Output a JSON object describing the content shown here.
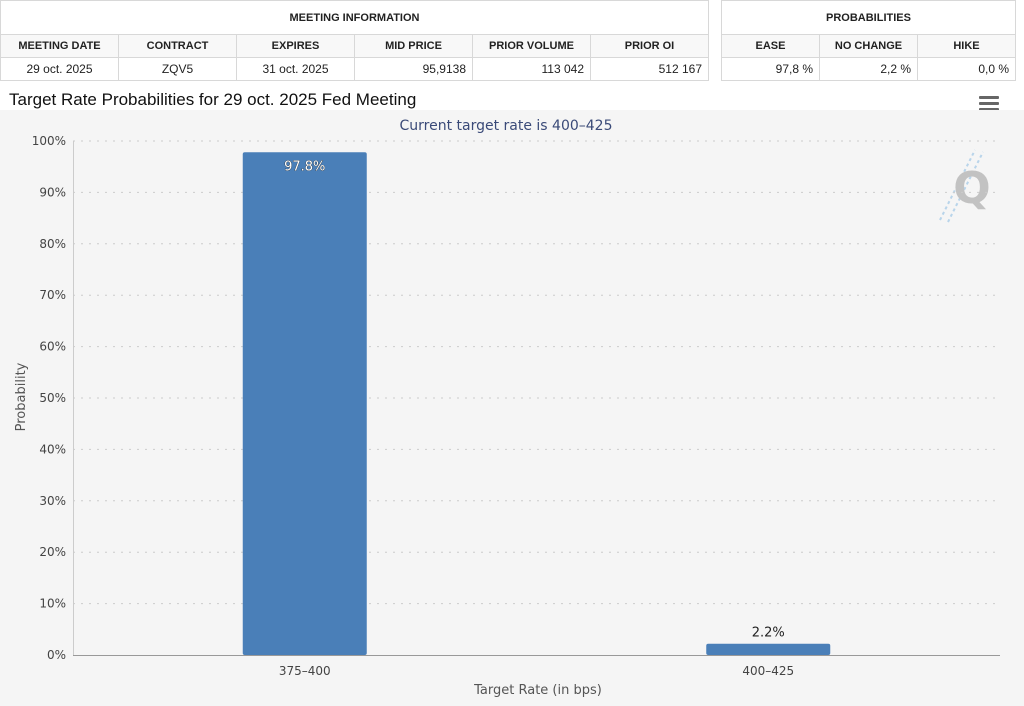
{
  "meeting_info": {
    "heading": "MEETING INFORMATION",
    "columns": [
      "MEETING DATE",
      "CONTRACT",
      "EXPIRES",
      "MID PRICE",
      "PRIOR VOLUME",
      "PRIOR OI"
    ],
    "row": [
      "29 oct. 2025",
      "ZQV5",
      "31 oct. 2025",
      "95,9138",
      "113 042",
      "512 167"
    ]
  },
  "probabilities": {
    "heading": "PROBABILITIES",
    "columns": [
      "EASE",
      "NO CHANGE",
      "HIKE"
    ],
    "row": [
      "97,8 %",
      "2,2 %",
      "0,0 %"
    ]
  },
  "chart_header": {
    "title": "Target Rate Probabilities for 29 oct. 2025 Fed Meeting",
    "menu_icon": "hamburger-menu-icon",
    "watermark_icon": "quikstrike-q-logo"
  },
  "chart_data": {
    "type": "bar",
    "title": "Target Rate Probabilities for 29 oct. 2025 Fed Meeting",
    "subtitle": "Current target rate is 400–425",
    "xlabel": "Target Rate (in bps)",
    "ylabel": "Probability",
    "categories": [
      "375–400",
      "400–425"
    ],
    "values": [
      97.8,
      2.2
    ],
    "data_labels": [
      "97.8%",
      "2.2%"
    ],
    "ylim": [
      0,
      100
    ],
    "yticks": [
      0,
      10,
      20,
      30,
      40,
      50,
      60,
      70,
      80,
      90,
      100
    ],
    "ytick_labels": [
      "0%",
      "10%",
      "20%",
      "30%",
      "40%",
      "50%",
      "60%",
      "70%",
      "80%",
      "90%",
      "100%"
    ],
    "grid": true,
    "legend": "none",
    "bar_color": "#4a7fb8",
    "plot_background": "#f5f5f5"
  }
}
